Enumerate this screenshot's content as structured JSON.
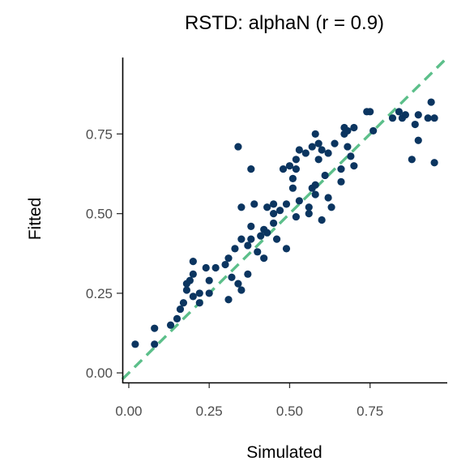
{
  "chart_data": {
    "type": "scatter",
    "title": "RSTD: alphaN (r = 0.9)",
    "xlabel": "Simulated",
    "ylabel": "Fitted",
    "xlim": [
      -0.02,
      0.99
    ],
    "ylim": [
      -0.03,
      0.99
    ],
    "xticks": [
      0.0,
      0.25,
      0.5,
      0.75
    ],
    "yticks": [
      0.0,
      0.25,
      0.5,
      0.75
    ],
    "xtick_labels": [
      "0.00",
      "0.25",
      "0.50",
      "0.75"
    ],
    "ytick_labels": [
      "0.00",
      "0.25",
      "0.50",
      "0.75"
    ],
    "grid": false,
    "reference_line": {
      "style": "dashed",
      "intercept": 0,
      "slope": 1
    },
    "colors": {
      "points": "#0b3560",
      "reference_line": "#5cbf8a"
    },
    "points": [
      {
        "x": 0.02,
        "y": 0.09
      },
      {
        "x": 0.08,
        "y": 0.09
      },
      {
        "x": 0.08,
        "y": 0.14
      },
      {
        "x": 0.13,
        "y": 0.15
      },
      {
        "x": 0.15,
        "y": 0.17
      },
      {
        "x": 0.16,
        "y": 0.2
      },
      {
        "x": 0.17,
        "y": 0.22
      },
      {
        "x": 0.18,
        "y": 0.26
      },
      {
        "x": 0.18,
        "y": 0.28
      },
      {
        "x": 0.19,
        "y": 0.29
      },
      {
        "x": 0.2,
        "y": 0.24
      },
      {
        "x": 0.2,
        "y": 0.31
      },
      {
        "x": 0.2,
        "y": 0.35
      },
      {
        "x": 0.22,
        "y": 0.25
      },
      {
        "x": 0.22,
        "y": 0.22
      },
      {
        "x": 0.24,
        "y": 0.33
      },
      {
        "x": 0.25,
        "y": 0.29
      },
      {
        "x": 0.25,
        "y": 0.25
      },
      {
        "x": 0.27,
        "y": 0.33
      },
      {
        "x": 0.3,
        "y": 0.34
      },
      {
        "x": 0.31,
        "y": 0.36
      },
      {
        "x": 0.31,
        "y": 0.23
      },
      {
        "x": 0.32,
        "y": 0.3
      },
      {
        "x": 0.33,
        "y": 0.39
      },
      {
        "x": 0.34,
        "y": 0.71
      },
      {
        "x": 0.34,
        "y": 0.28
      },
      {
        "x": 0.35,
        "y": 0.26
      },
      {
        "x": 0.35,
        "y": 0.42
      },
      {
        "x": 0.35,
        "y": 0.52
      },
      {
        "x": 0.37,
        "y": 0.31
      },
      {
        "x": 0.37,
        "y": 0.4
      },
      {
        "x": 0.38,
        "y": 0.42
      },
      {
        "x": 0.38,
        "y": 0.46
      },
      {
        "x": 0.38,
        "y": 0.64
      },
      {
        "x": 0.39,
        "y": 0.53
      },
      {
        "x": 0.4,
        "y": 0.38
      },
      {
        "x": 0.41,
        "y": 0.43
      },
      {
        "x": 0.42,
        "y": 0.45
      },
      {
        "x": 0.42,
        "y": 0.36
      },
      {
        "x": 0.43,
        "y": 0.44
      },
      {
        "x": 0.43,
        "y": 0.52
      },
      {
        "x": 0.45,
        "y": 0.47
      },
      {
        "x": 0.45,
        "y": 0.5
      },
      {
        "x": 0.45,
        "y": 0.53
      },
      {
        "x": 0.46,
        "y": 0.42
      },
      {
        "x": 0.47,
        "y": 0.51
      },
      {
        "x": 0.48,
        "y": 0.64
      },
      {
        "x": 0.49,
        "y": 0.39
      },
      {
        "x": 0.49,
        "y": 0.53
      },
      {
        "x": 0.5,
        "y": 0.65
      },
      {
        "x": 0.51,
        "y": 0.61
      },
      {
        "x": 0.51,
        "y": 0.58
      },
      {
        "x": 0.52,
        "y": 0.67
      },
      {
        "x": 0.52,
        "y": 0.64
      },
      {
        "x": 0.52,
        "y": 0.49
      },
      {
        "x": 0.53,
        "y": 0.7
      },
      {
        "x": 0.53,
        "y": 0.54
      },
      {
        "x": 0.55,
        "y": 0.69
      },
      {
        "x": 0.56,
        "y": 0.5
      },
      {
        "x": 0.56,
        "y": 0.52
      },
      {
        "x": 0.57,
        "y": 0.58
      },
      {
        "x": 0.57,
        "y": 0.71
      },
      {
        "x": 0.58,
        "y": 0.75
      },
      {
        "x": 0.58,
        "y": 0.56
      },
      {
        "x": 0.58,
        "y": 0.59
      },
      {
        "x": 0.59,
        "y": 0.67
      },
      {
        "x": 0.59,
        "y": 0.72
      },
      {
        "x": 0.6,
        "y": 0.7
      },
      {
        "x": 0.6,
        "y": 0.48
      },
      {
        "x": 0.61,
        "y": 0.62
      },
      {
        "x": 0.62,
        "y": 0.69
      },
      {
        "x": 0.62,
        "y": 0.55
      },
      {
        "x": 0.63,
        "y": 0.52
      },
      {
        "x": 0.64,
        "y": 0.72
      },
      {
        "x": 0.66,
        "y": 0.6
      },
      {
        "x": 0.66,
        "y": 0.64
      },
      {
        "x": 0.67,
        "y": 0.75
      },
      {
        "x": 0.67,
        "y": 0.77
      },
      {
        "x": 0.68,
        "y": 0.71
      },
      {
        "x": 0.68,
        "y": 0.76
      },
      {
        "x": 0.69,
        "y": 0.68
      },
      {
        "x": 0.7,
        "y": 0.65
      },
      {
        "x": 0.7,
        "y": 0.77
      },
      {
        "x": 0.74,
        "y": 0.82
      },
      {
        "x": 0.75,
        "y": 0.82
      },
      {
        "x": 0.76,
        "y": 0.76
      },
      {
        "x": 0.82,
        "y": 0.8
      },
      {
        "x": 0.84,
        "y": 0.82
      },
      {
        "x": 0.85,
        "y": 0.8
      },
      {
        "x": 0.86,
        "y": 0.81
      },
      {
        "x": 0.88,
        "y": 0.67
      },
      {
        "x": 0.89,
        "y": 0.78
      },
      {
        "x": 0.9,
        "y": 0.81
      },
      {
        "x": 0.9,
        "y": 0.73
      },
      {
        "x": 0.93,
        "y": 0.8
      },
      {
        "x": 0.94,
        "y": 0.85
      },
      {
        "x": 0.95,
        "y": 0.66
      },
      {
        "x": 0.95,
        "y": 0.8
      }
    ]
  }
}
